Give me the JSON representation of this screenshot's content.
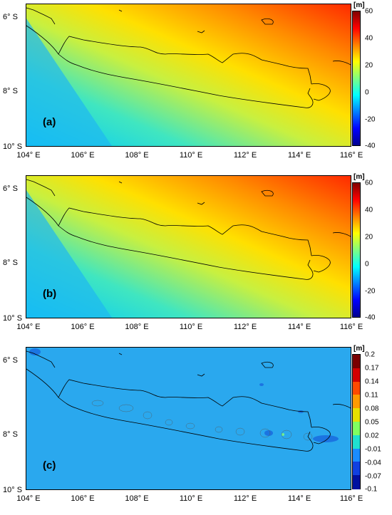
{
  "panels": [
    {
      "label": "(a)",
      "unit": "[m]",
      "y_ticks": [
        "6° S",
        "8° S",
        "10° S"
      ],
      "x_ticks": [
        "104° E",
        "106° E",
        "108° E",
        "110° E",
        "112° E",
        "114° E",
        "116° E"
      ],
      "colorbar_ticks": [
        "60",
        "40",
        "20",
        "0",
        "-20",
        "-40"
      ],
      "colorbar_range": [
        -40,
        60
      ],
      "field": "smooth"
    },
    {
      "label": "(b)",
      "unit": "[m]",
      "y_ticks": [
        "6° S",
        "8° S",
        "10° S"
      ],
      "x_ticks": [
        "104° E",
        "106° E",
        "108° E",
        "110° E",
        "112° E",
        "114° E",
        "116° E"
      ],
      "colorbar_ticks": [
        "60",
        "40",
        "20",
        "0",
        "-20",
        "-40"
      ],
      "colorbar_range": [
        -40,
        60
      ],
      "field": "smooth"
    },
    {
      "label": "(c)",
      "unit": "[m]",
      "y_ticks": [
        "6° S",
        "8° S",
        "10° S"
      ],
      "x_ticks": [
        "104° E",
        "106° E",
        "108° E",
        "110° E",
        "112° E",
        "114° E",
        "116° E"
      ],
      "colorbar_ticks": [
        "0.2",
        "0.17",
        "0.14",
        "0.11",
        "0.08",
        "0.05",
        "0.02",
        "-0.01",
        "-0.04",
        "-0.07",
        "-0.1"
      ],
      "colorbar_range": [
        -0.1,
        0.2
      ],
      "field": "difference"
    }
  ],
  "colors": {
    "jet": [
      "#00008f",
      "#0000ff",
      "#0080ff",
      "#00ffff",
      "#80ff80",
      "#ffff00",
      "#ff8000",
      "#ff0000",
      "#800000"
    ],
    "diff_background": "#2aa8ee",
    "coastline": "#000000"
  }
}
